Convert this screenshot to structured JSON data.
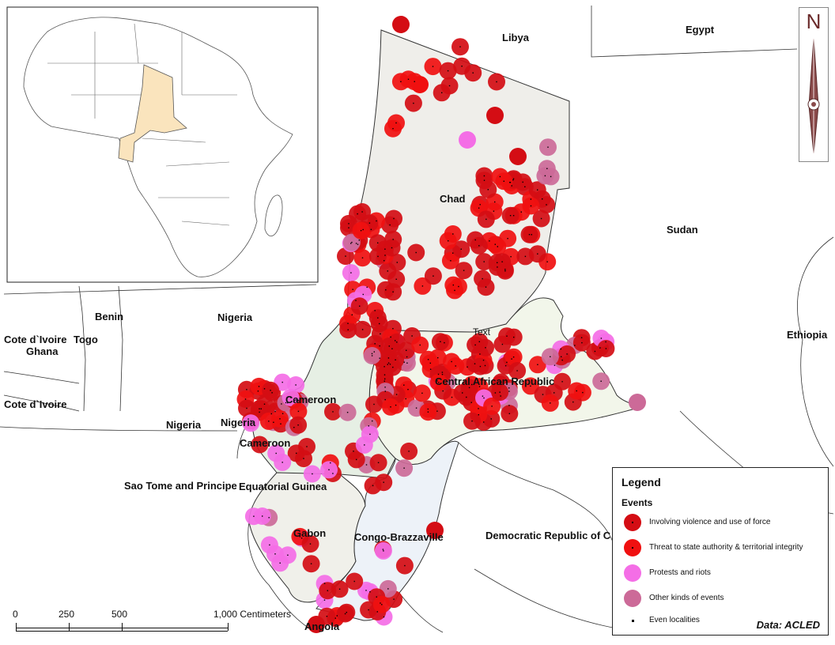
{
  "countries": [
    {
      "id": "libya",
      "name": "Libya"
    },
    {
      "id": "egypt",
      "name": "Egypt"
    },
    {
      "id": "chad",
      "name": "Chad"
    },
    {
      "id": "sudan",
      "name": "Sudan"
    },
    {
      "id": "nigeria",
      "name": "Nigeria"
    },
    {
      "id": "benin",
      "name": "Benin"
    },
    {
      "id": "togo",
      "name": "Togo"
    },
    {
      "id": "cote-ivoire-1",
      "name": "Cote d`Ivoire"
    },
    {
      "id": "ghana",
      "name": "Ghana"
    },
    {
      "id": "cote-ivoire-2",
      "name": "Cote d`Ivoire"
    },
    {
      "id": "nigeria-2",
      "name": "Nigeria"
    },
    {
      "id": "nigeria-3",
      "name": "Nigeria"
    },
    {
      "id": "cameroon",
      "name": "Cameroon"
    },
    {
      "id": "cameroon-2",
      "name": "Cameroon"
    },
    {
      "id": "car",
      "name": "Central African Republic"
    },
    {
      "id": "ethiopia",
      "name": "Ethiopia"
    },
    {
      "id": "sao-tome",
      "name": "Sao Tome and Principe"
    },
    {
      "id": "eq-guinea",
      "name": "Equatorial Guinea"
    },
    {
      "id": "gabon",
      "name": "Gabon"
    },
    {
      "id": "congo-b",
      "name": "Congo-Brazzaville"
    },
    {
      "id": "drc",
      "name": "Democratic Republic of C"
    },
    {
      "id": "angola",
      "name": "Angola"
    },
    {
      "id": "text-marker",
      "name": "Text"
    }
  ],
  "legend": {
    "title": "Legend",
    "subtitle": "Events",
    "items": [
      {
        "label": "Involving violence and use of force",
        "color": "#d40d14",
        "type": "circle"
      },
      {
        "label": "Threat to state authority & territorial integrity",
        "color": "#f01010",
        "type": "circle"
      },
      {
        "label": "Protests and riots",
        "color": "#f46ee6",
        "type": "circle"
      },
      {
        "label": "Other kinds of events",
        "color": "#cc6a98",
        "type": "circle"
      },
      {
        "label": "Even localities",
        "color": "#000000",
        "type": "dot"
      }
    ]
  },
  "source": "Data: ACLED",
  "scale_bar": {
    "labels": [
      "0",
      "250",
      "500",
      "1,000 Centimeters"
    ]
  },
  "north_arrow": {
    "letter": "N"
  },
  "colors": {
    "chad_fill": "#efeeea",
    "car_fill": "#f2f6ea",
    "cameroon_fill": "#e6efe4",
    "gabon_fill": "#f0f0ea",
    "congo_fill": "#edf2f8",
    "inset_highlight": "#fae4bd",
    "violence": "#d40d14",
    "threat": "#f01010",
    "protests": "#f46ee6",
    "other": "#cc6a98"
  }
}
